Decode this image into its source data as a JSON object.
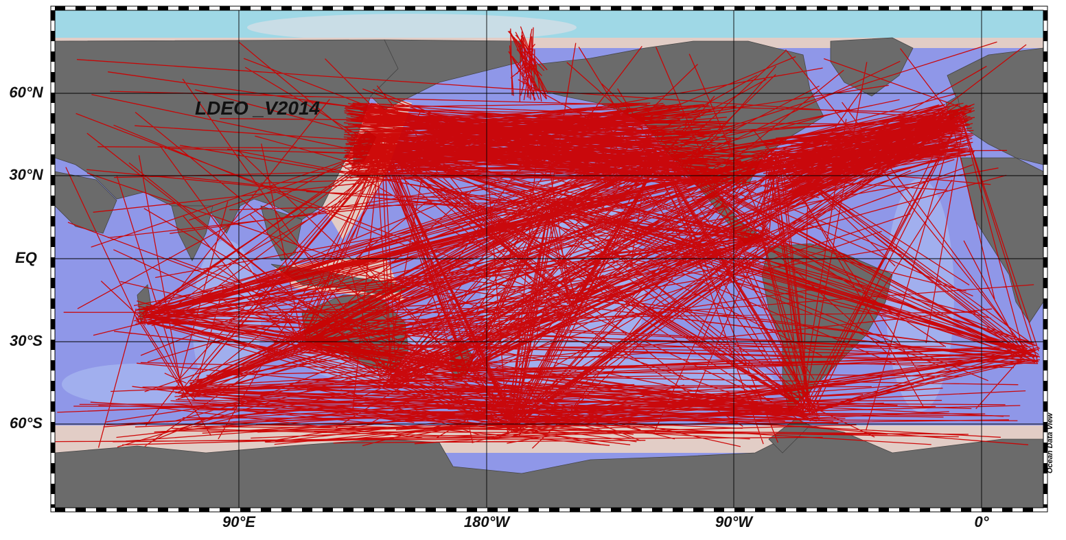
{
  "map": {
    "title": "LDEO _V2014",
    "credit": "Ocean Data View",
    "lat_labels": [
      "60°N",
      "30°N",
      "EQ",
      "30°S",
      "60°S"
    ],
    "lon_labels": [
      "90°E",
      "180°W",
      "90°W",
      "0°"
    ],
    "colors": {
      "land": "#6b6b6b",
      "deep_ocean": "#8f97e8",
      "mid_ocean": "#9eb6ec",
      "shelf": "#9fd8e6",
      "coast": "#e2cdc6",
      "track": "#cc0000",
      "grid": "#000000"
    },
    "legend_items": []
  }
}
